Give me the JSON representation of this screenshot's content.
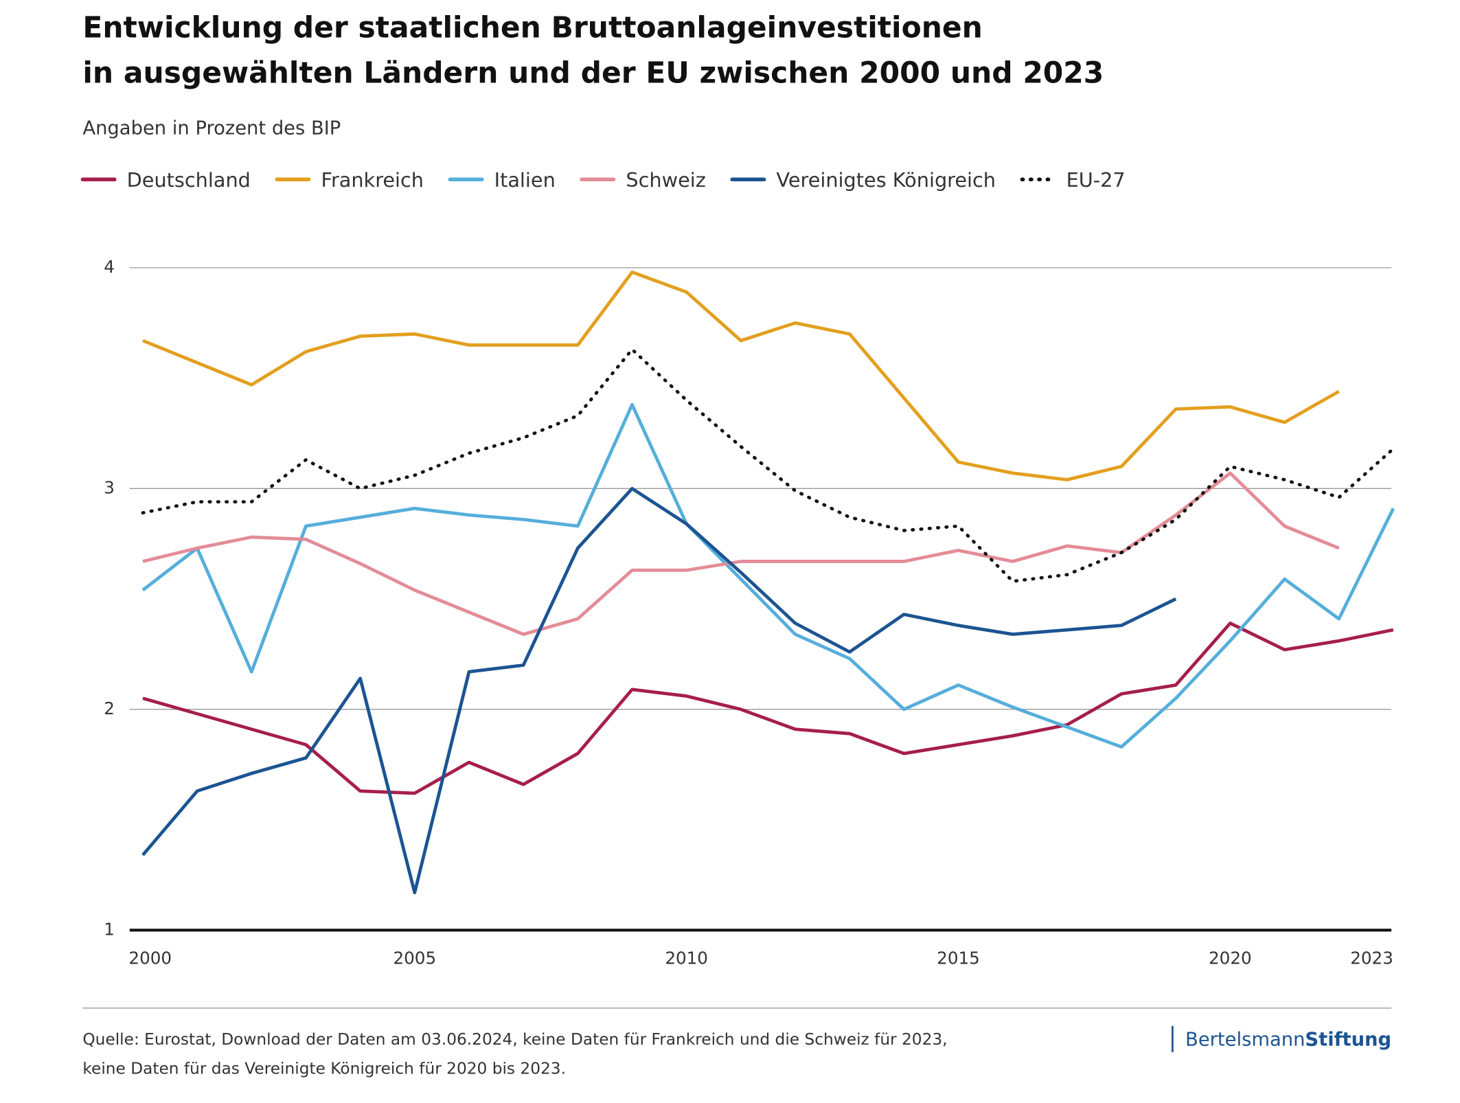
{
  "chart_data": {
    "type": "line",
    "title": [
      "Entwicklung der staatlichen Bruttoanlageinvestitionen",
      "in ausgewählten Ländern und der EU zwischen 2000 und 2023"
    ],
    "subtitle": "Angaben in Prozent des BIP",
    "x": [
      2000,
      2001,
      2002,
      2003,
      2004,
      2005,
      2006,
      2007,
      2008,
      2009,
      2010,
      2011,
      2012,
      2013,
      2014,
      2015,
      2016,
      2017,
      2018,
      2019,
      2020,
      2021,
      2022,
      2023
    ],
    "xlim": [
      2000,
      2023
    ],
    "xticks": [
      2000,
      2005,
      2010,
      2015,
      2020,
      2023
    ],
    "ylim": [
      1,
      4
    ],
    "yticks": [
      1,
      2,
      3,
      4
    ],
    "grid": true,
    "series": [
      {
        "name": "Deutschland",
        "color": "#a61e4d",
        "values": [
          2.05,
          1.98,
          1.91,
          1.84,
          1.63,
          1.62,
          1.76,
          1.66,
          1.8,
          2.09,
          2.06,
          2.0,
          1.91,
          1.89,
          1.8,
          1.84,
          1.88,
          1.93,
          2.07,
          2.11,
          2.39,
          2.27,
          2.31,
          2.36
        ]
      },
      {
        "name": "Frankreich",
        "color": "#e39f1e",
        "values": [
          3.67,
          3.57,
          3.47,
          3.62,
          3.69,
          3.7,
          3.65,
          3.65,
          3.65,
          3.98,
          3.89,
          3.67,
          3.75,
          3.7,
          3.41,
          3.12,
          3.07,
          3.04,
          3.1,
          3.36,
          3.37,
          3.3,
          3.44,
          null
        ]
      },
      {
        "name": "Italien",
        "color": "#55aedb",
        "values": [
          2.54,
          2.73,
          2.17,
          2.83,
          2.87,
          2.91,
          2.88,
          2.86,
          2.83,
          3.38,
          2.84,
          2.59,
          2.34,
          2.23,
          2.0,
          2.11,
          2.01,
          1.92,
          1.83,
          2.05,
          2.31,
          2.59,
          2.41,
          2.91
        ]
      },
      {
        "name": "Schweiz",
        "color": "#e38c97",
        "values": [
          2.67,
          2.73,
          2.78,
          2.77,
          2.66,
          2.54,
          2.44,
          2.34,
          2.41,
          2.63,
          2.63,
          2.67,
          2.67,
          2.67,
          2.67,
          2.72,
          2.67,
          2.74,
          2.71,
          2.88,
          3.07,
          2.83,
          2.73,
          null
        ]
      },
      {
        "name": "Vereinigtes Königreich",
        "color": "#1c5492",
        "values": [
          1.34,
          1.63,
          1.71,
          1.78,
          2.14,
          1.17,
          2.17,
          2.2,
          2.73,
          3.0,
          2.84,
          2.62,
          2.39,
          2.26,
          2.43,
          2.38,
          2.34,
          2.36,
          2.38,
          2.5,
          null,
          null,
          null,
          null
        ]
      },
      {
        "name": "EU-27",
        "color": "#111111",
        "dash": "dotted",
        "values": [
          2.89,
          2.94,
          2.94,
          3.13,
          3.0,
          3.06,
          3.16,
          3.23,
          3.33,
          3.63,
          3.4,
          3.19,
          2.99,
          2.87,
          2.81,
          2.83,
          2.58,
          2.61,
          2.71,
          2.86,
          3.1,
          3.04,
          2.96,
          3.18
        ]
      }
    ],
    "source": [
      "Quelle: Eurostat, Download der Daten am 03.06.2024, keine Daten für Frankreich und die Schweiz für 2023,",
      "keine Daten für das Vereinigte Königreich für 2020 bis 2023."
    ],
    "brand": [
      "Bertelsmann",
      "Stiftung"
    ]
  }
}
